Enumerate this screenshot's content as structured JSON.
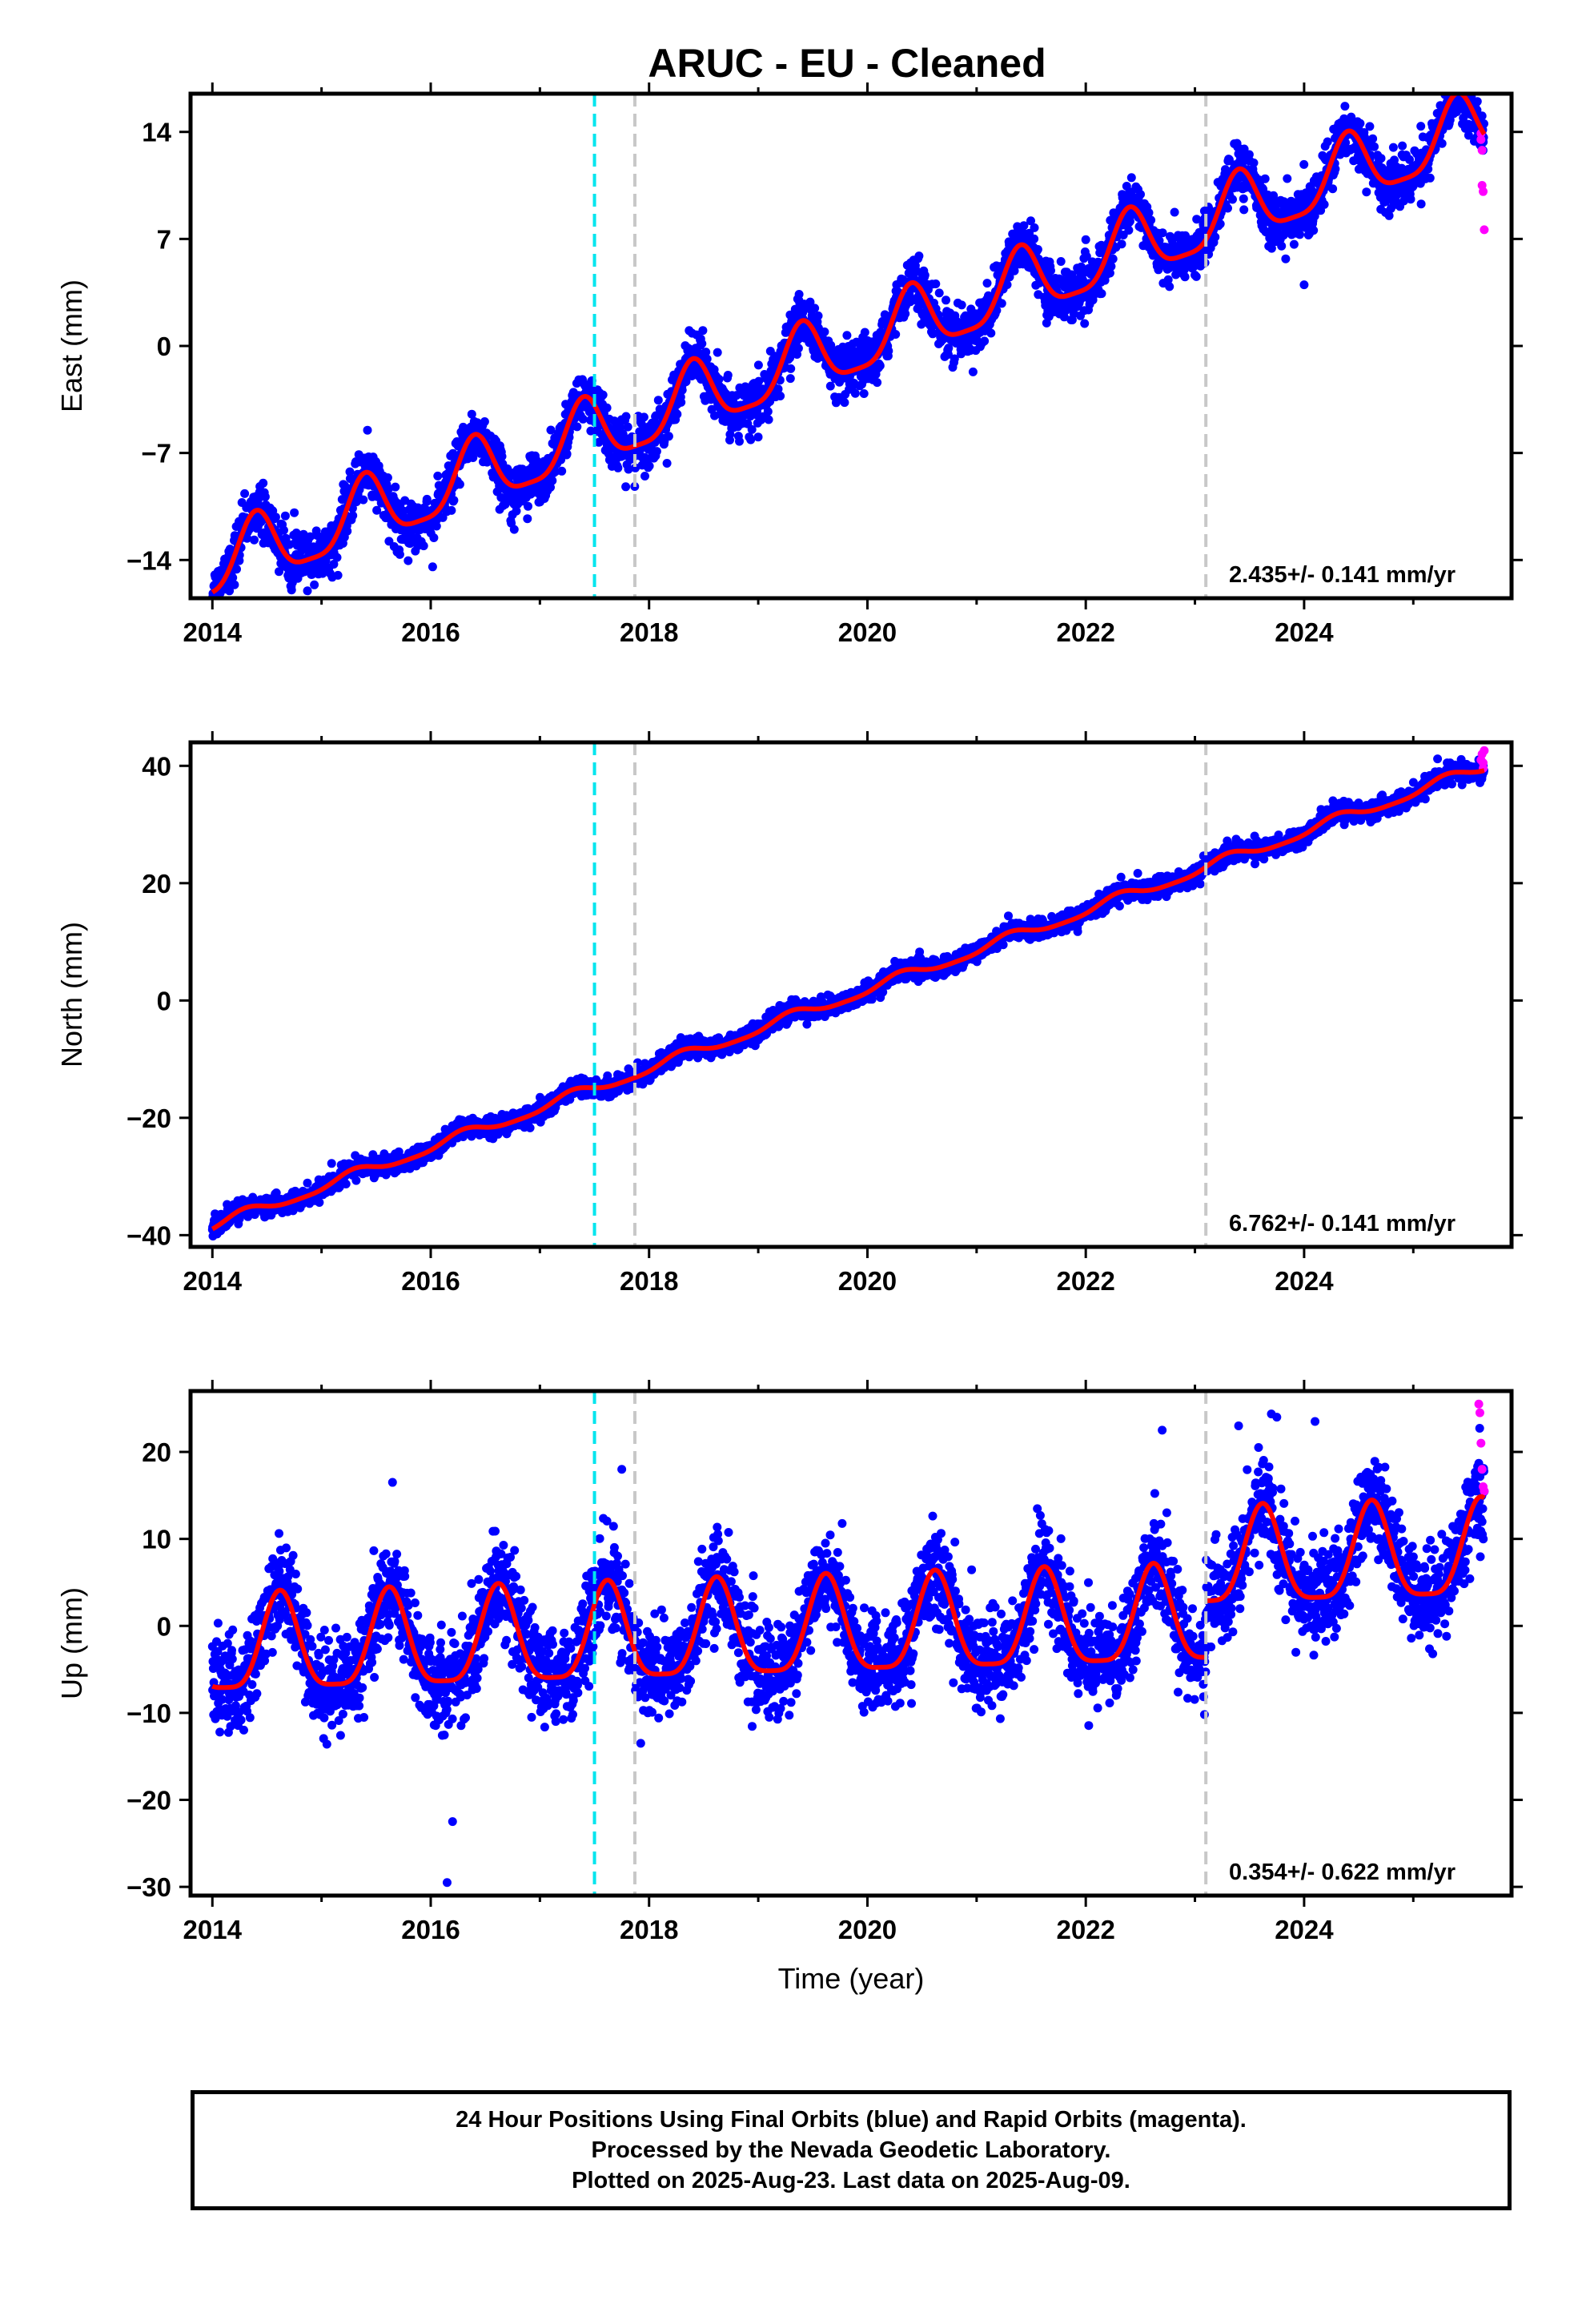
{
  "title": "ARUC  - EU - Cleaned",
  "colors": {
    "final_orbits": "#0000ff",
    "rapid_orbits": "#ff00ff",
    "model": "#ff0000",
    "antenna_change": "#00e5ee",
    "equipment_change": "#c8c8c8"
  },
  "chart_data": [
    {
      "type": "scatter",
      "ylabel": "East (mm)",
      "xlabel": "",
      "xlim": [
        2013.8,
        2025.9
      ],
      "ylim": [
        -16.5,
        16.5
      ],
      "xticks": [
        2014,
        2016,
        2018,
        2020,
        2022,
        2024
      ],
      "yticks": [
        -14,
        -7,
        0,
        7,
        14
      ],
      "rate_text": "2.435+/- 0.141 mm/yr",
      "vlines": [
        {
          "x": 2017.5,
          "kind": "antenna_change"
        },
        {
          "x": 2017.87,
          "kind": "equipment_change"
        },
        {
          "x": 2023.1,
          "kind": "equipment_change"
        }
      ],
      "trend": {
        "start_year": 2014.0,
        "end_year": 2025.65,
        "start_value": -14.5,
        "end_value": 14.4
      },
      "seasonal_amplitude": 2.2,
      "annual_peak_fraction": 0.4,
      "scatter_spread": 1.4,
      "breaks": [],
      "outliers": [
        {
          "x": 2024.0,
          "y": 4.0
        },
        {
          "x": 2017.1,
          "y": -5.5
        }
      ],
      "rapid_points": [
        {
          "x": 2025.62,
          "y": 13.5
        },
        {
          "x": 2025.63,
          "y": 12.8
        },
        {
          "x": 2025.63,
          "y": 10.5
        },
        {
          "x": 2025.64,
          "y": 10.1
        },
        {
          "x": 2025.65,
          "y": 7.6
        },
        {
          "x": 2025.62,
          "y": 13.9
        }
      ]
    },
    {
      "type": "scatter",
      "ylabel": "North (mm)",
      "xlabel": "",
      "xlim": [
        2013.8,
        2025.9
      ],
      "ylim": [
        -42,
        44
      ],
      "xticks": [
        2014,
        2016,
        2018,
        2020,
        2022,
        2024
      ],
      "yticks": [
        -40,
        -20,
        0,
        20,
        40
      ],
      "rate_text": "6.762+/- 0.141 mm/yr",
      "vlines": [
        {
          "x": 2017.5,
          "kind": "antenna_change"
        },
        {
          "x": 2017.87,
          "kind": "equipment_change"
        },
        {
          "x": 2023.1,
          "kind": "equipment_change"
        }
      ],
      "trend": {
        "start_year": 2014.0,
        "end_year": 2025.65,
        "start_value": -38.5,
        "end_value": 39.8
      },
      "seasonal_amplitude": 0.9,
      "annual_peak_fraction": 0.3,
      "scatter_spread": 1.3,
      "breaks": [],
      "outliers": [],
      "rapid_points": [
        {
          "x": 2025.62,
          "y": 41.0
        },
        {
          "x": 2025.63,
          "y": 42.0
        },
        {
          "x": 2025.64,
          "y": 40.5
        },
        {
          "x": 2025.64,
          "y": 39.6
        },
        {
          "x": 2025.65,
          "y": 42.6
        }
      ]
    },
    {
      "type": "scatter",
      "ylabel": "Up (mm)",
      "xlabel": "Time (year)",
      "xlim": [
        2013.8,
        2025.9
      ],
      "ylim": [
        -31,
        27
      ],
      "xticks": [
        2014,
        2016,
        2018,
        2020,
        2022,
        2024
      ],
      "yticks": [
        -30,
        -20,
        -10,
        0,
        10,
        20
      ],
      "rate_text": "0.354+/- 0.622 mm/yr",
      "vlines": [
        {
          "x": 2017.5,
          "kind": "antenna_change"
        },
        {
          "x": 2017.87,
          "kind": "equipment_change"
        },
        {
          "x": 2023.1,
          "kind": "equipment_change"
        }
      ],
      "trend": {
        "start_year": 2014.0,
        "end_year": 2025.65,
        "start_value": -3.0,
        "end_value": 1.5
      },
      "seasonal_amplitude": 5.5,
      "annual_peak_fraction": 0.62,
      "scatter_spread": 4.5,
      "breaks": [
        {
          "x": 2023.1,
          "offset": 6.5
        }
      ],
      "outliers": [
        {
          "x": 2016.15,
          "y": -29.5
        },
        {
          "x": 2016.2,
          "y": -22.5
        },
        {
          "x": 2017.75,
          "y": 18.0
        },
        {
          "x": 2023.75,
          "y": 24.0
        },
        {
          "x": 2024.1,
          "y": 23.5
        },
        {
          "x": 2022.7,
          "y": 22.5
        },
        {
          "x": 2023.4,
          "y": 23.0
        },
        {
          "x": 2015.65,
          "y": 16.5
        }
      ],
      "rapid_points": [
        {
          "x": 2025.6,
          "y": 25.5
        },
        {
          "x": 2025.61,
          "y": 24.5
        },
        {
          "x": 2025.62,
          "y": 21.0
        },
        {
          "x": 2025.63,
          "y": 18.0
        },
        {
          "x": 2025.64,
          "y": 16.0
        },
        {
          "x": 2025.65,
          "y": 15.5
        }
      ]
    }
  ],
  "footer": {
    "line1": "24 Hour Positions Using Final Orbits (blue) and Rapid Orbits (magenta).",
    "line2": "Processed by the Nevada Geodetic Laboratory.",
    "line3": "Plotted on 2025-Aug-23. Last data on 2025-Aug-09."
  }
}
